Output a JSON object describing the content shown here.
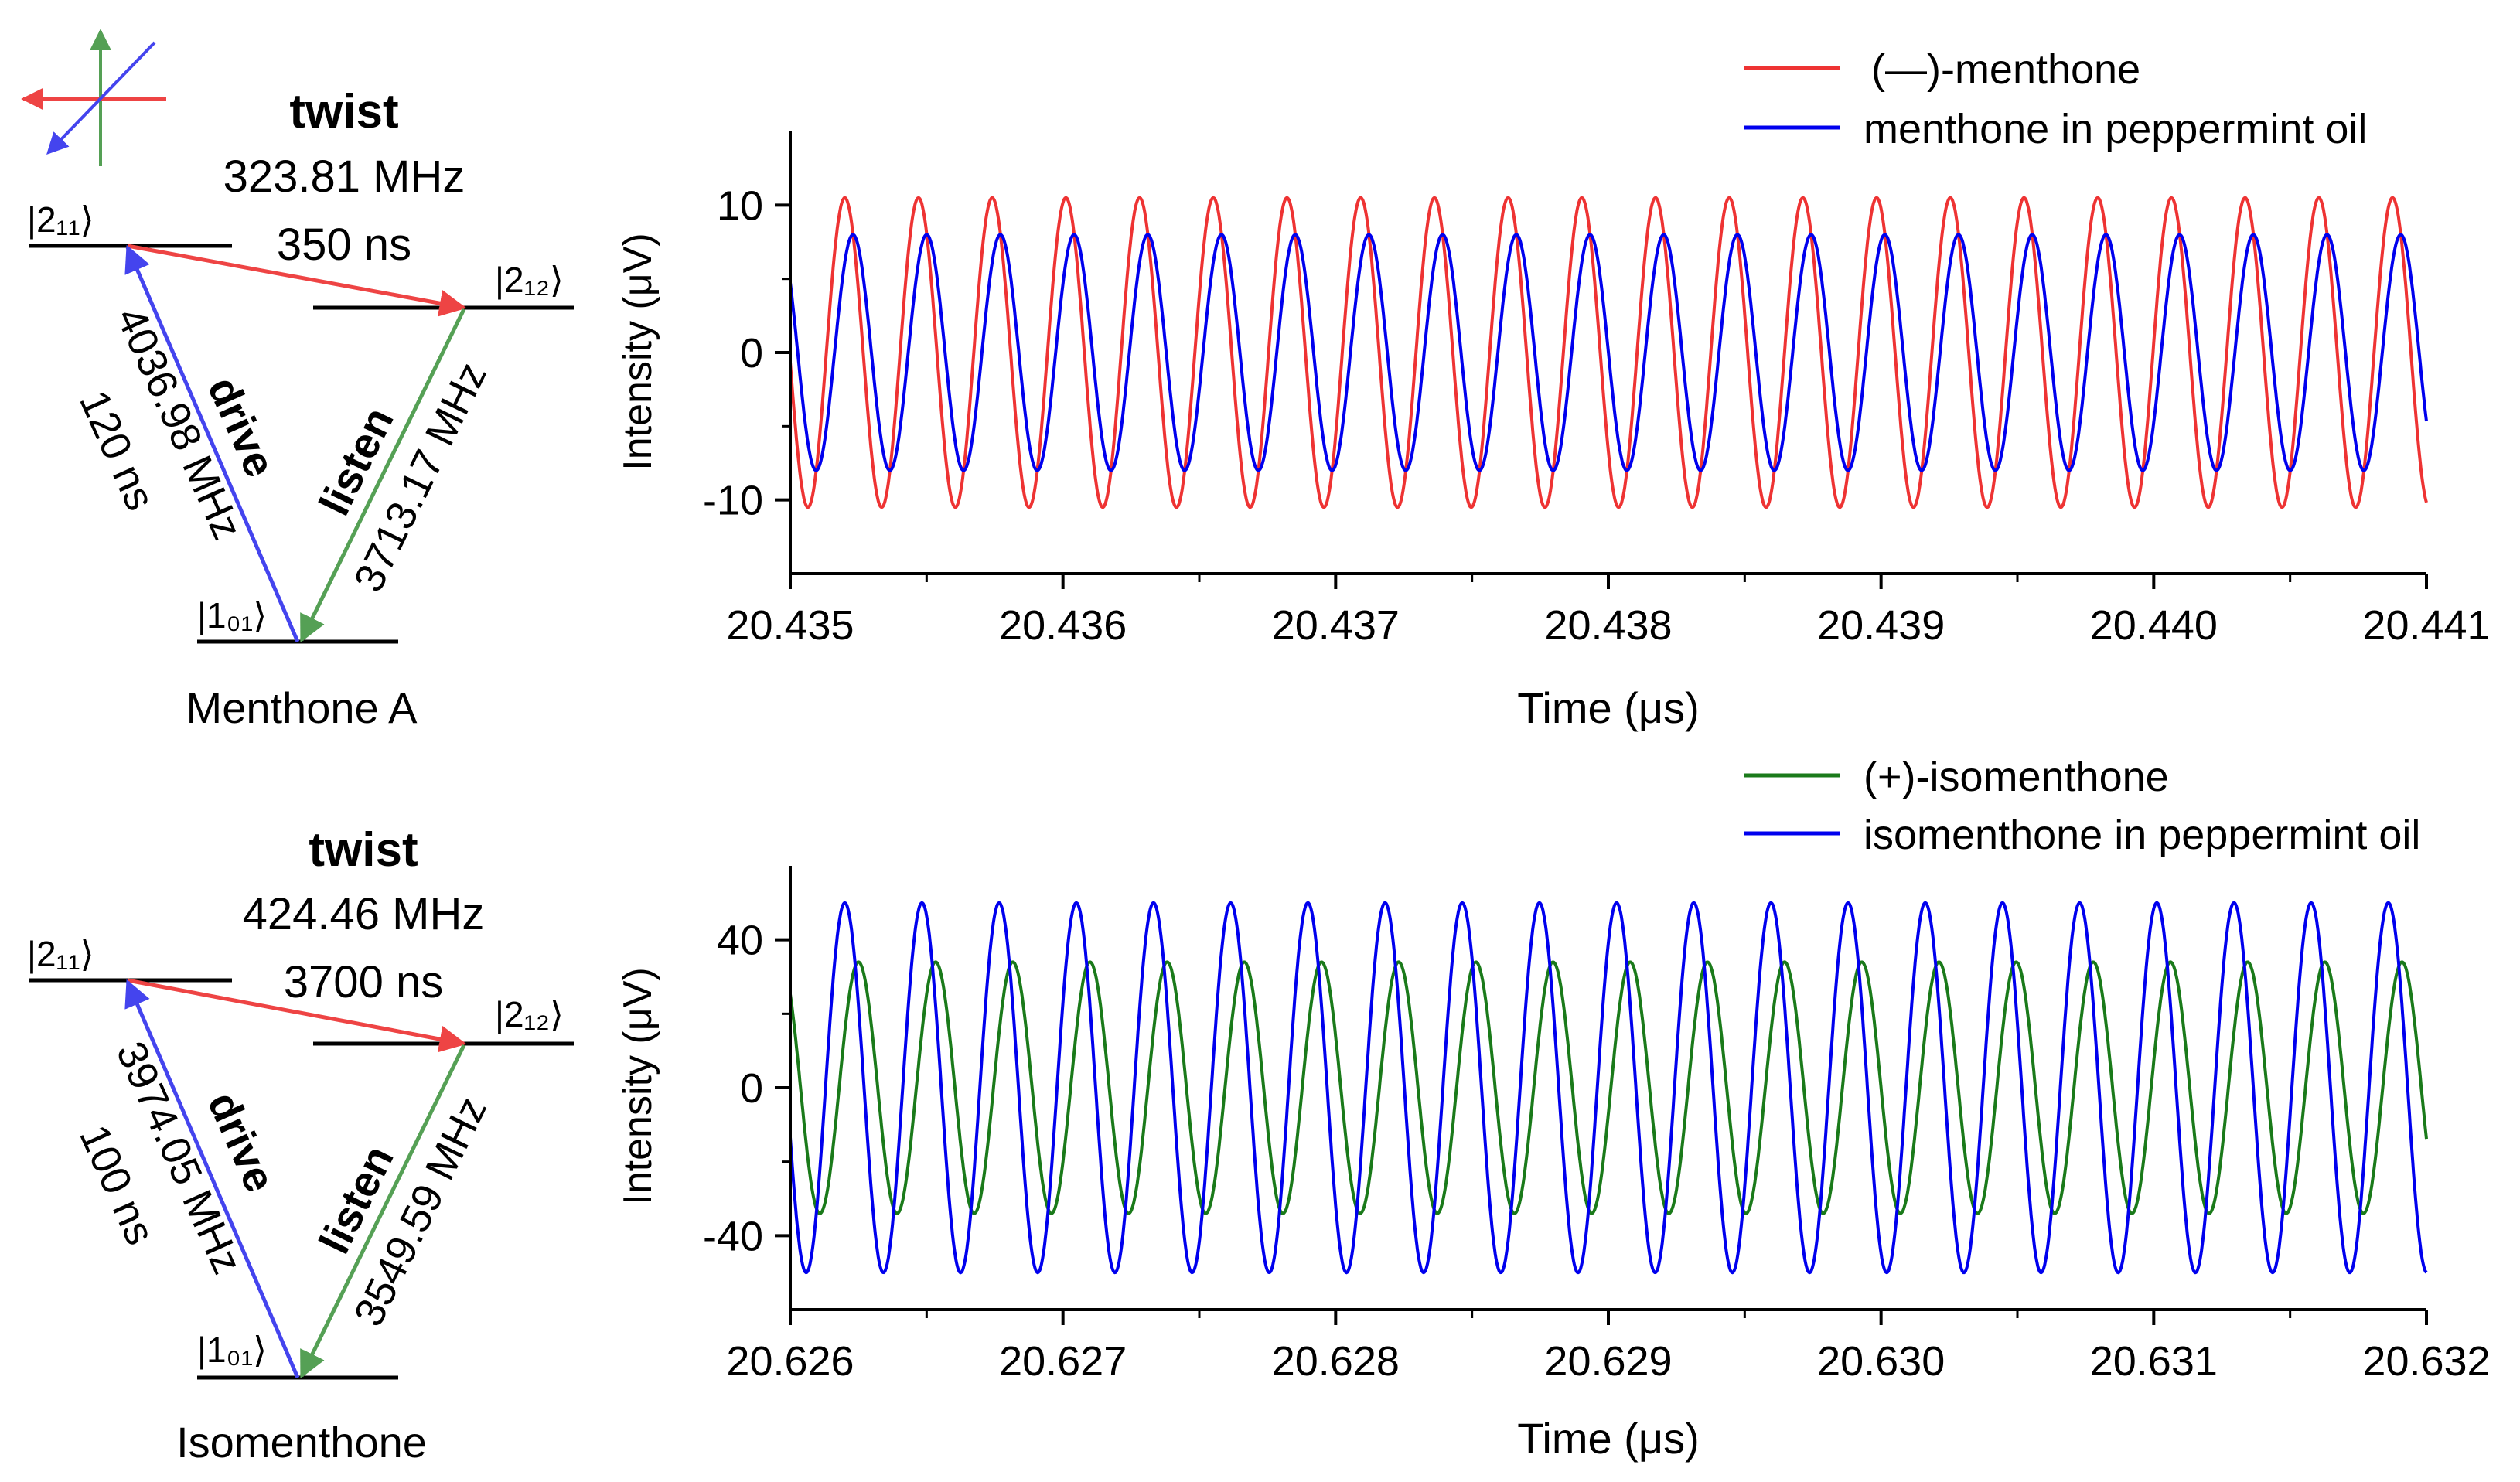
{
  "diagrams": [
    {
      "name": "Menthone A",
      "twist_label": "twist",
      "twist_freq": "323.81 MHz",
      "twist_time": "350 ns",
      "drive_label": "drive",
      "drive_freq": "4036.98 MHz",
      "drive_time": "120 ns",
      "listen_label": "listen",
      "listen_freq": "3713.17 MHz",
      "level_top": "|2₁₁⟩",
      "level_mid": "|2₁₂⟩",
      "level_bot": "|1₀₁⟩"
    },
    {
      "name": "Isomenthone",
      "twist_label": "twist",
      "twist_freq": "424.46 MHz",
      "twist_time": "3700 ns",
      "drive_label": "drive",
      "drive_freq": "3974.05 MHz",
      "drive_time": "100 ns",
      "listen_label": "listen",
      "listen_freq": "3549.59 MHz",
      "level_top": "|2₁₁⟩",
      "level_mid": "|2₁₂⟩",
      "level_bot": "|1₀₁⟩"
    }
  ],
  "colors": {
    "red": "#ee3333",
    "blue": "#0000ee",
    "green": "#1a7a1a",
    "drive_arrow": "#4444ee",
    "listen_arrow": "#55a055",
    "twist_arrow": "#ee4444"
  },
  "chart_data": [
    {
      "type": "line",
      "xlabel": "Time (μs)",
      "ylabel": "Intensity (μV)",
      "xlim": [
        20.435,
        20.441
      ],
      "ylim": [
        -15,
        15
      ],
      "xticks": [
        "20.435",
        "20.436",
        "20.437",
        "20.438",
        "20.439",
        "20.440",
        "20.441"
      ],
      "yticks": [
        "10",
        "0",
        "-10"
      ],
      "ytick_values": [
        10,
        0,
        -10
      ],
      "cycles": 22.2,
      "series": [
        {
          "name": "(—)-menthone",
          "color": "#ee3333",
          "amplitude": 10.5,
          "peak_first": 20.4352
        },
        {
          "name": "menthone in peppermint oil",
          "color": "#0000ee",
          "amplitude": 8.0,
          "peak_first": 20.43523
        }
      ]
    },
    {
      "type": "line",
      "xlabel": "Time (μs)",
      "ylabel": "Intensity (μV)",
      "xlim": [
        20.626,
        20.632
      ],
      "ylim": [
        -60,
        60
      ],
      "xticks": [
        "20.626",
        "20.627",
        "20.628",
        "20.629",
        "20.630",
        "20.631",
        "20.632"
      ],
      "yticks": [
        "40",
        "0",
        "-40"
      ],
      "ytick_values": [
        40,
        0,
        -40
      ],
      "cycles": 21.2,
      "series": [
        {
          "name": "(+)-isomenthone",
          "color": "#1a7a1a",
          "amplitude": 34,
          "peak_first": 20.62625
        },
        {
          "name": "isomenthone in peppermint oil",
          "color": "#0000ee",
          "amplitude": 50,
          "peak_first": 20.6262
        }
      ]
    }
  ]
}
